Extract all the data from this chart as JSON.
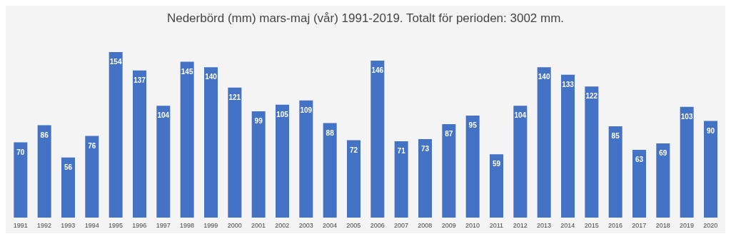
{
  "chart_data": {
    "type": "bar",
    "title": "Nederbörd (mm) mars-maj (vår) 1991-2019. Totalt för perioden: 3002 mm.",
    "categories": [
      "1991",
      "1992",
      "1993",
      "1994",
      "1995",
      "1996",
      "1997",
      "1998",
      "1999",
      "2000",
      "2001",
      "2002",
      "2003",
      "2004",
      "2005",
      "2006",
      "2007",
      "2008",
      "2009",
      "2010",
      "2011",
      "2012",
      "2013",
      "2014",
      "2015",
      "2016",
      "2017",
      "2018",
      "2019",
      "2020"
    ],
    "values": [
      70,
      86,
      56,
      76,
      154,
      137,
      104,
      145,
      140,
      121,
      99,
      105,
      109,
      88,
      72,
      146,
      71,
      73,
      87,
      95,
      59,
      104,
      140,
      133,
      122,
      85,
      63,
      69,
      103,
      90
    ],
    "color": "#4472c4",
    "data_labels": true
  }
}
